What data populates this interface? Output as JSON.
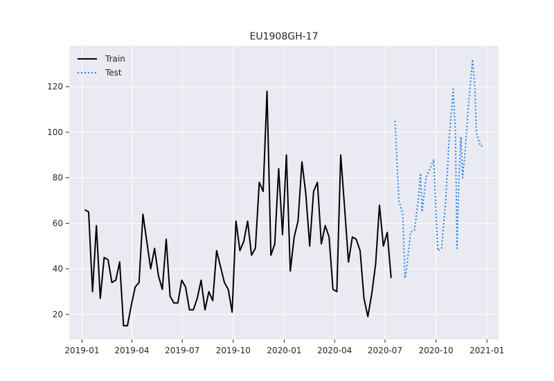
{
  "chart_data": {
    "type": "line",
    "title": "EU1908GH-17",
    "xlabel": "",
    "ylabel": "",
    "xlim": [
      "2018-12-09",
      "2021-01-22"
    ],
    "ylim": [
      9,
      138
    ],
    "grid": true,
    "legend_position": "top-left",
    "x_ticks": [
      "2019-01",
      "2019-04",
      "2019-07",
      "2019-10",
      "2020-01",
      "2020-04",
      "2020-07",
      "2020-10",
      "2021-01"
    ],
    "y_ticks": [
      20,
      40,
      60,
      80,
      100,
      120
    ],
    "series": [
      {
        "name": "Train",
        "color": "#000000",
        "style": "solid",
        "x": [
          "2019-01-06",
          "2019-01-13",
          "2019-01-20",
          "2019-01-27",
          "2019-02-03",
          "2019-02-10",
          "2019-02-17",
          "2019-02-24",
          "2019-03-03",
          "2019-03-10",
          "2019-03-17",
          "2019-03-24",
          "2019-03-31",
          "2019-04-07",
          "2019-04-14",
          "2019-04-21",
          "2019-04-28",
          "2019-05-05",
          "2019-05-12",
          "2019-05-19",
          "2019-05-26",
          "2019-06-02",
          "2019-06-09",
          "2019-06-16",
          "2019-06-23",
          "2019-06-30",
          "2019-07-07",
          "2019-07-14",
          "2019-07-21",
          "2019-07-28",
          "2019-08-04",
          "2019-08-11",
          "2019-08-18",
          "2019-08-25",
          "2019-09-01",
          "2019-09-08",
          "2019-09-15",
          "2019-09-22",
          "2019-09-29",
          "2019-10-06",
          "2019-10-13",
          "2019-10-20",
          "2019-10-27",
          "2019-11-03",
          "2019-11-10",
          "2019-11-17",
          "2019-11-24",
          "2019-12-01",
          "2019-12-08",
          "2019-12-15",
          "2019-12-22",
          "2019-12-29",
          "2020-01-05",
          "2020-01-12",
          "2020-01-19",
          "2020-01-26",
          "2020-02-02",
          "2020-02-09",
          "2020-02-16",
          "2020-02-23",
          "2020-03-01",
          "2020-03-08",
          "2020-03-15",
          "2020-03-22",
          "2020-03-29",
          "2020-04-05",
          "2020-04-12",
          "2020-04-19",
          "2020-04-26",
          "2020-05-03",
          "2020-05-10",
          "2020-05-17",
          "2020-05-24",
          "2020-05-31",
          "2020-06-07",
          "2020-06-14",
          "2020-06-21",
          "2020-06-28",
          "2020-07-05",
          "2020-07-12"
        ],
        "y": [
          66,
          65,
          30,
          59,
          27,
          45,
          44,
          34,
          35,
          43,
          15,
          15,
          24,
          32,
          34,
          64,
          52,
          40,
          49,
          37,
          31,
          53,
          28,
          25,
          25,
          35,
          32,
          22,
          22,
          27,
          35,
          22,
          30,
          26,
          48,
          41,
          34,
          31,
          21,
          61,
          48,
          52,
          61,
          46,
          49,
          78,
          74,
          118,
          46,
          51,
          84,
          55,
          90,
          39,
          54,
          61,
          87,
          73,
          50,
          74,
          78,
          51,
          59,
          54,
          31,
          30,
          90,
          67,
          43,
          54,
          53,
          48,
          27,
          19,
          29,
          42,
          68,
          50,
          56,
          36
        ]
      },
      {
        "name": "Test",
        "color": "#1f82e8",
        "style": "dotted",
        "x": [
          "2020-07-19",
          "2020-07-26",
          "2020-08-02",
          "2020-08-06",
          "2020-08-09",
          "2020-08-16",
          "2020-08-23",
          "2020-08-30",
          "2020-09-03",
          "2020-09-06",
          "2020-09-13",
          "2020-09-20",
          "2020-09-27",
          "2020-10-04",
          "2020-10-11",
          "2020-10-18",
          "2020-10-25",
          "2020-11-01",
          "2020-11-05",
          "2020-11-08",
          "2020-11-11",
          "2020-11-15",
          "2020-11-18",
          "2020-11-22",
          "2020-11-29",
          "2020-12-06",
          "2020-12-10",
          "2020-12-13",
          "2020-12-20",
          "2020-12-27"
        ],
        "y": [
          105,
          70,
          64,
          36,
          40,
          56,
          57,
          70,
          82,
          65,
          80,
          84,
          88,
          48,
          49,
          68,
          98,
          119,
          100,
          49,
          78,
          98,
          80,
          90,
          113,
          132,
          120,
          100,
          94,
          94
        ]
      }
    ]
  }
}
